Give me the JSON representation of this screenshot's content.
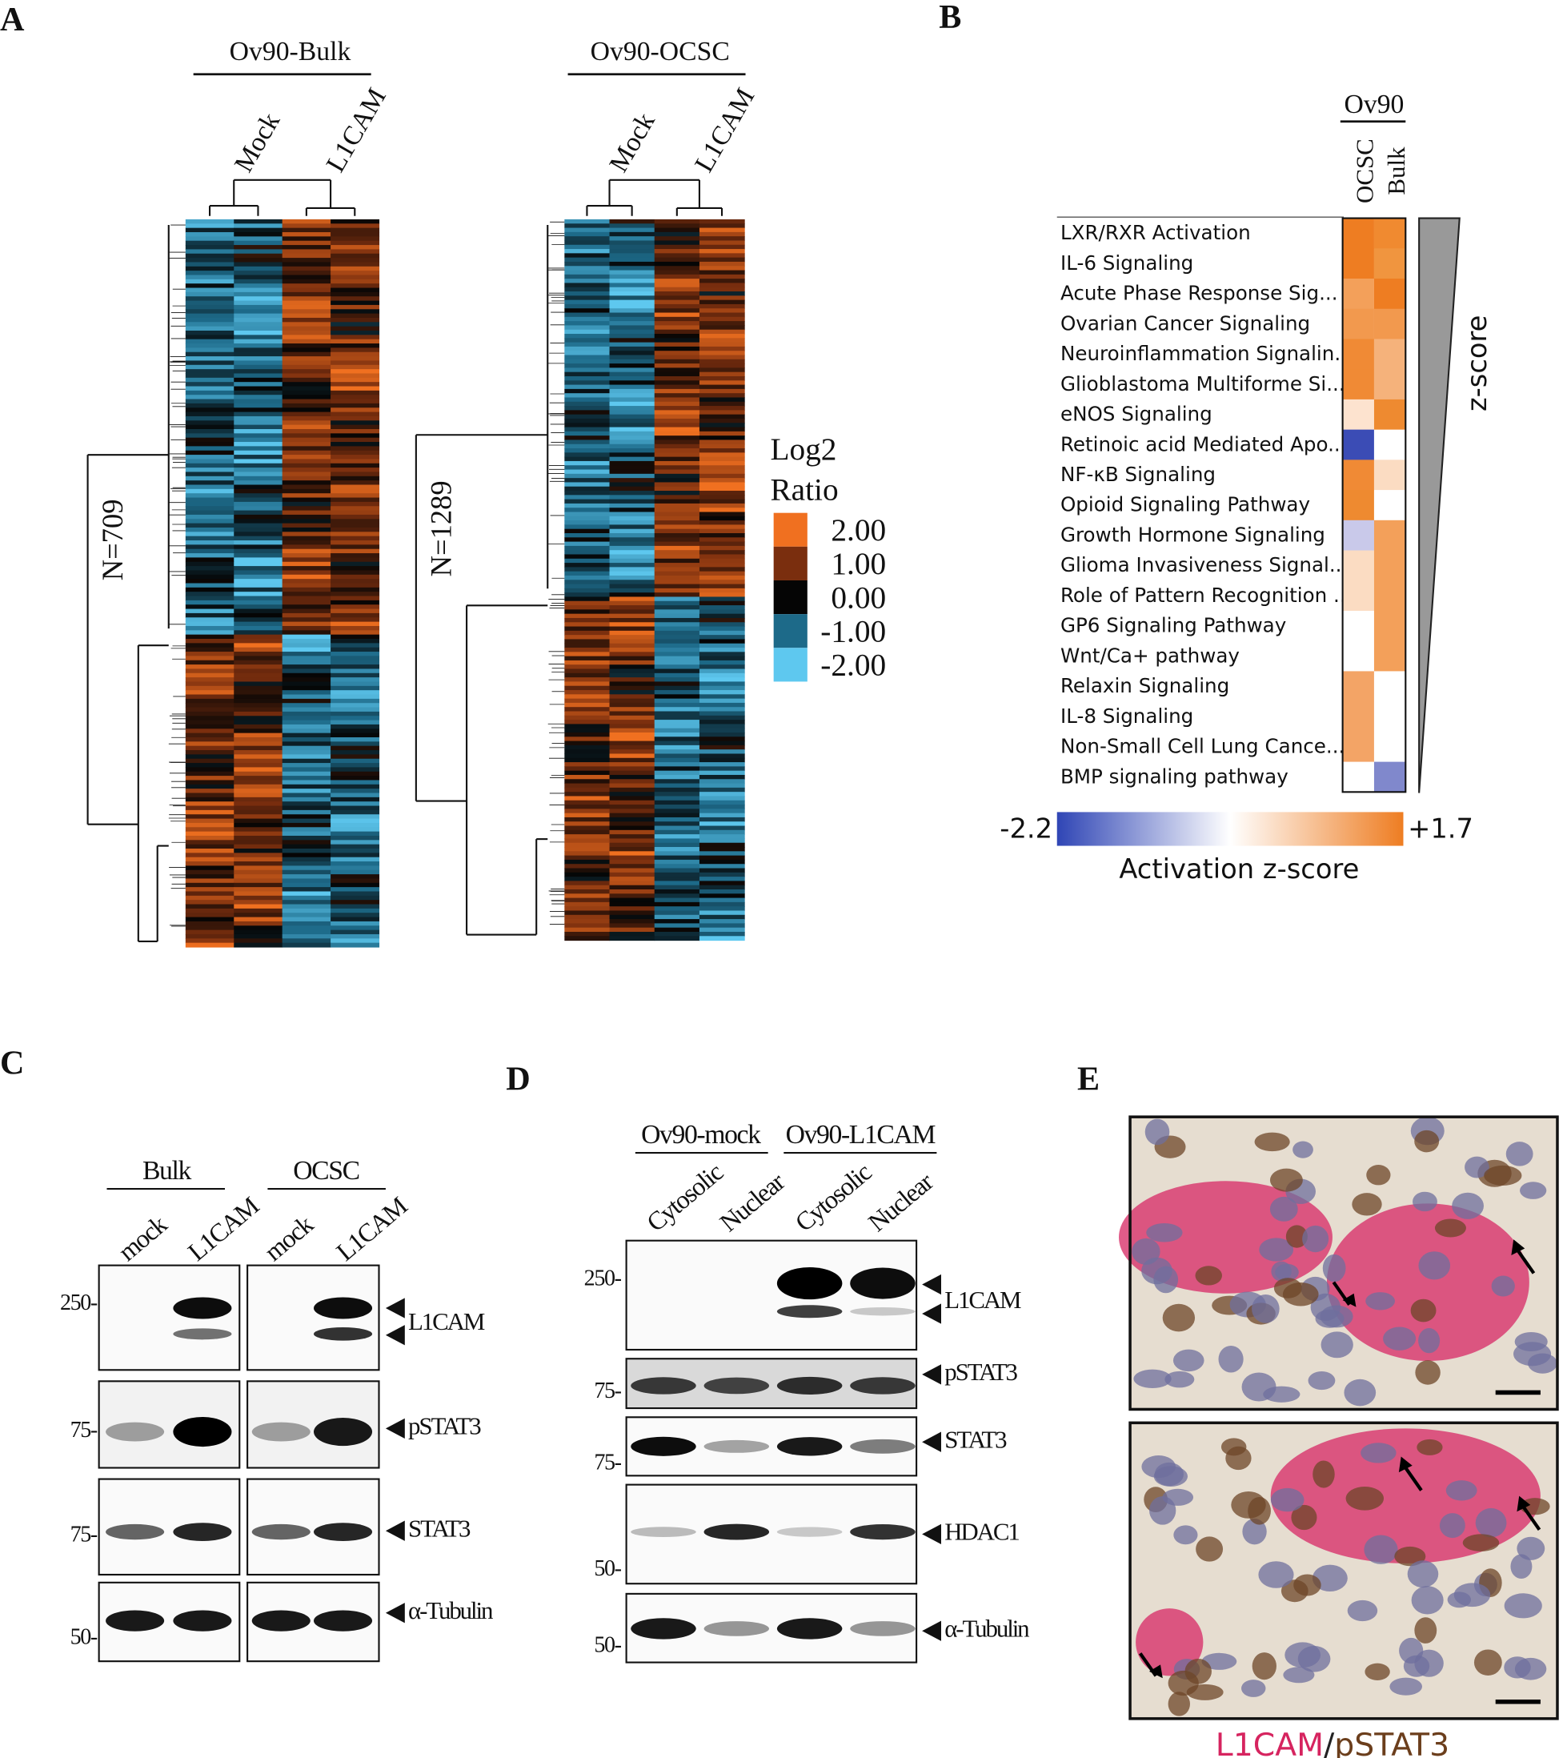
{
  "panels": {
    "A": {
      "label": "A",
      "groups": [
        {
          "title": "Ov90-Bulk",
          "columns": [
            "Mock",
            "L1CAM"
          ],
          "n_label": "N=709"
        },
        {
          "title": "Ov90-OCSC",
          "columns": [
            "Mock",
            "L1CAM"
          ],
          "n_label": "N=1289"
        }
      ],
      "legend": {
        "title_lines": [
          "Log2",
          "Ratio"
        ],
        "entries": [
          "2.00",
          "1.00",
          "0.00",
          "-1.00",
          "-2.00"
        ]
      }
    },
    "B": {
      "label": "B",
      "group": "Ov90",
      "columns": [
        "OCSC",
        "Bulk"
      ],
      "pathways": [
        "LXR/RXR Activation",
        "IL-6 Signaling",
        "Acute Phase Response Sig...",
        "Ovarian Cancer Signaling",
        "Neuroinflammation Signalin...",
        "Glioblastoma Multiforme Si...",
        "eNOS Signaling",
        "Retinoic acid Mediated Apo...",
        "NF-κB Signaling",
        "Opioid Signaling Pathway",
        "Growth Hormone Signaling",
        "Glioma Invasiveness Signal...",
        "Role of Pattern Recognition ...",
        "GP6 Signaling Pathway",
        "Wnt/Ca+ pathway",
        "Relaxin Signaling",
        "IL-8 Signaling",
        "Non-Small Cell Lung Cance...",
        "BMP signaling pathway"
      ],
      "side_label": "z-score",
      "scale_min": "-2.2",
      "scale_max": "+1.7",
      "scale_title": "Activation z-score"
    },
    "C": {
      "label": "C",
      "groups": [
        {
          "title": "Bulk",
          "lanes": [
            "mock",
            "L1CAM"
          ]
        },
        {
          "title": "OCSC",
          "lanes": [
            "mock",
            "L1CAM"
          ]
        }
      ],
      "blots": [
        {
          "name": "L1CAM",
          "marker": "250-"
        },
        {
          "name": "pSTAT3",
          "marker": "75-"
        },
        {
          "name": "STAT3",
          "marker": "75-"
        },
        {
          "name": "α-Tubulin",
          "marker": "50-"
        }
      ]
    },
    "D": {
      "label": "D",
      "groups": [
        {
          "title": "Ov90-mock",
          "lanes": [
            "Cytosolic",
            "Nuclear"
          ]
        },
        {
          "title": "Ov90-L1CAM",
          "lanes": [
            "Cytosolic",
            "Nuclear"
          ]
        }
      ],
      "blots": [
        {
          "name": "L1CAM",
          "marker": "250-"
        },
        {
          "name": "pSTAT3",
          "marker": "75-"
        },
        {
          "name": "STAT3",
          "marker": "75-"
        },
        {
          "name": "HDAC1",
          "marker": "50-"
        },
        {
          "name": "α-Tubulin",
          "marker": "50-"
        }
      ]
    },
    "E": {
      "label": "E",
      "caption": [
        "L1CAM",
        "/",
        "pSTAT3"
      ]
    }
  }
}
